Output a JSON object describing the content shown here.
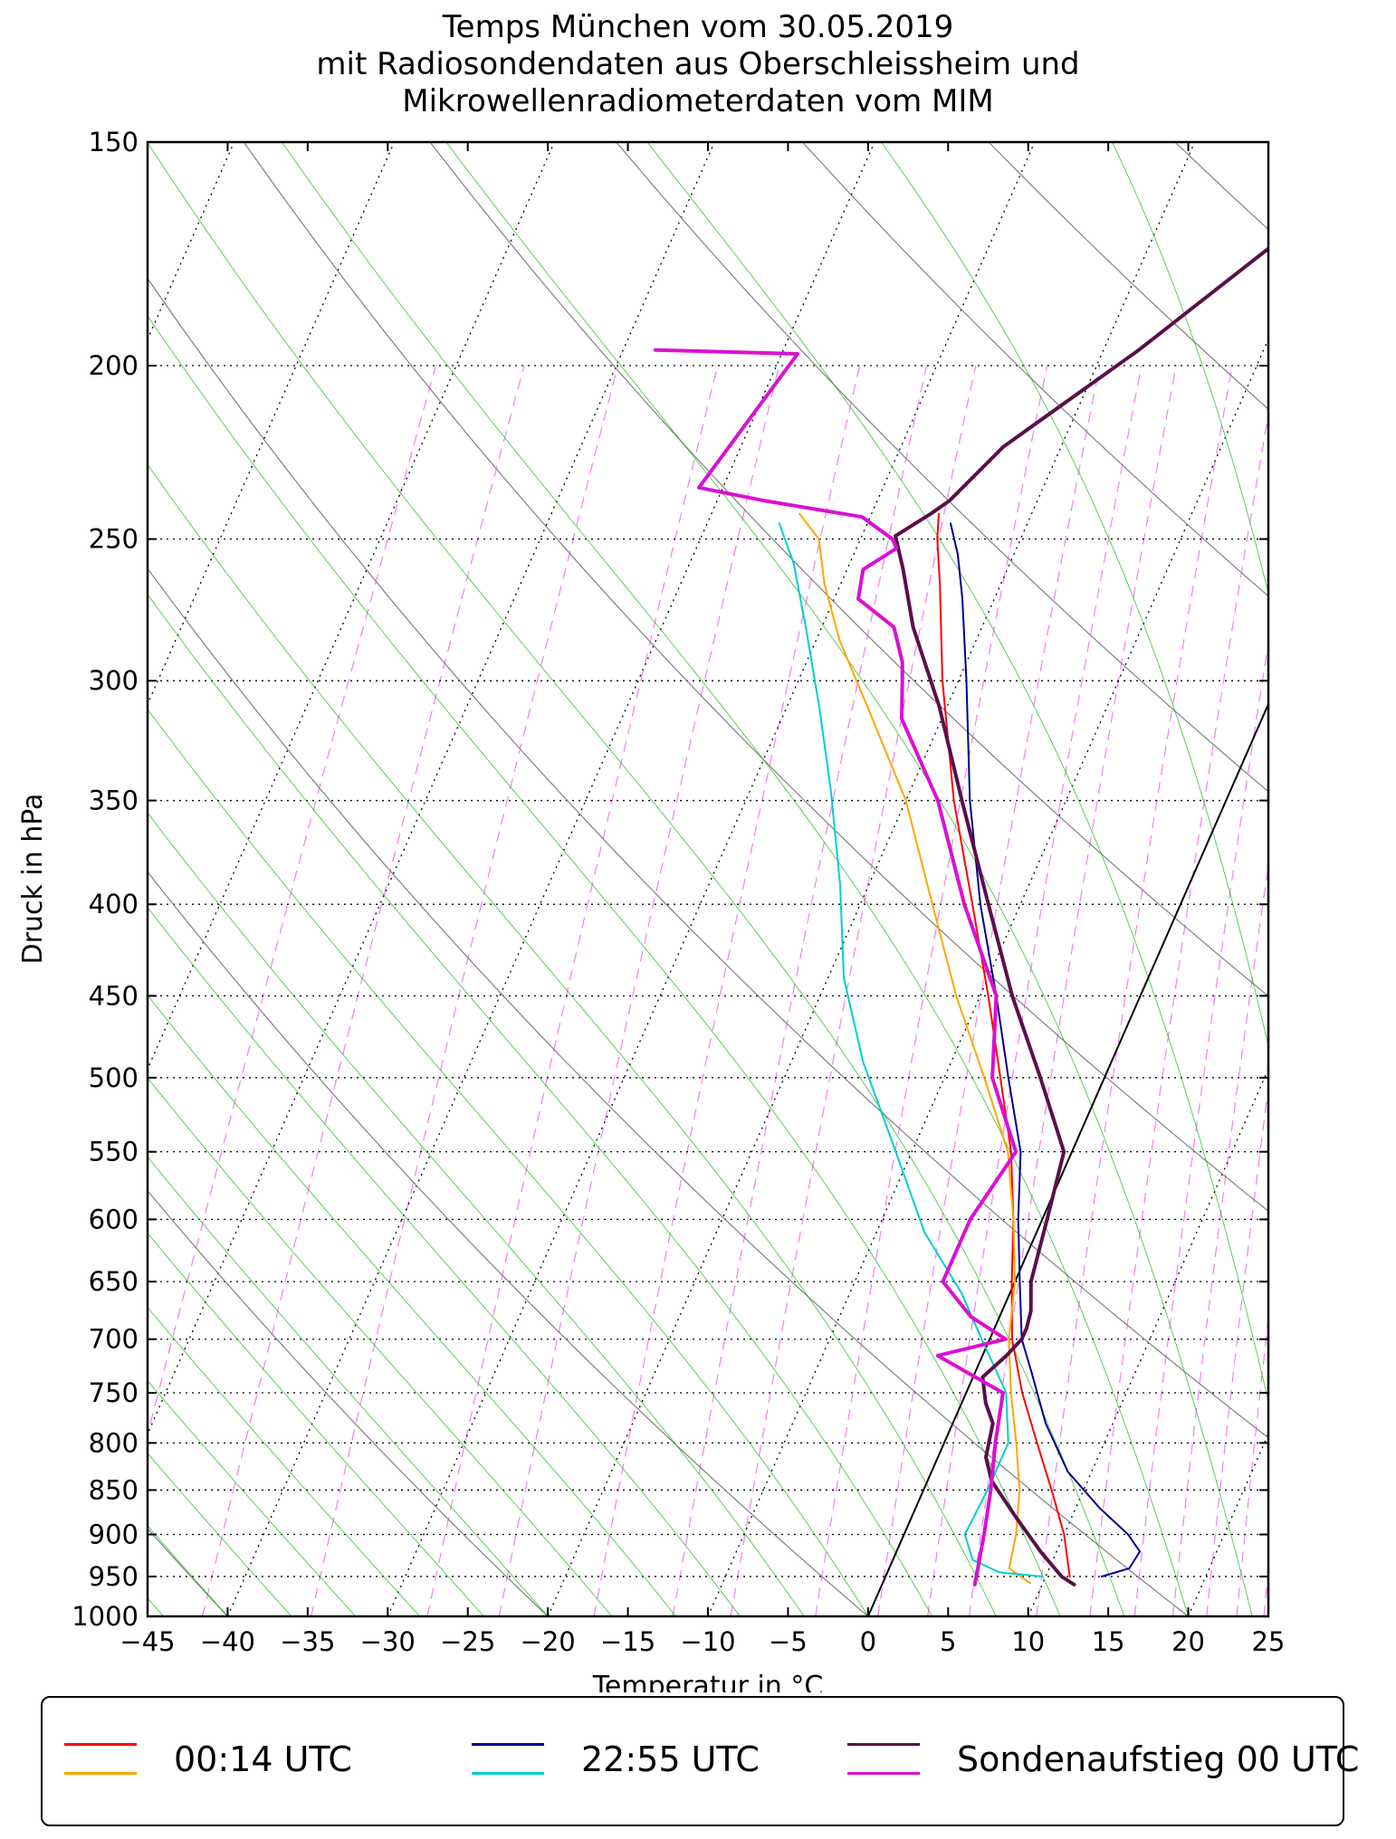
{
  "title_lines": [
    "Temps München vom 30.05.2019",
    "mit Radiosondendaten aus Oberschleissheim und",
    "Mikrowellenradiometerdaten vom MIM"
  ],
  "chart_data": {
    "type": "line",
    "xlabel": "Temperatur in °C",
    "ylabel": "Druck in hPa",
    "xlim": [
      -45,
      25
    ],
    "ylim": [
      1000,
      150
    ],
    "y_scale": "log",
    "x_ticks": [
      -45,
      -40,
      -35,
      -30,
      -25,
      -20,
      -15,
      -10,
      -5,
      0,
      5,
      10,
      15,
      20,
      25
    ],
    "y_ticks": [
      150,
      200,
      250,
      300,
      350,
      400,
      450,
      500,
      550,
      600,
      650,
      700,
      750,
      800,
      850,
      900,
      950,
      1000
    ],
    "legend_placement": "bottom, outside plot",
    "series": [
      {
        "name": "00:14 UTC",
        "kind": "temperature",
        "color": "#ff0000",
        "width": 2,
        "points": [
          [
            11.5,
            950
          ],
          [
            10,
            900
          ],
          [
            8,
            850
          ],
          [
            5.8,
            800
          ],
          [
            3.5,
            750
          ],
          [
            1.4,
            700
          ],
          [
            -0.2,
            650
          ],
          [
            -1.8,
            600
          ],
          [
            -3.8,
            550
          ],
          [
            -6.5,
            500
          ],
          [
            -9.5,
            450
          ],
          [
            -13,
            400
          ],
          [
            -17,
            350
          ],
          [
            -21,
            300
          ],
          [
            -23.8,
            265
          ],
          [
            -25.2,
            250
          ],
          [
            -25.8,
            242
          ]
        ]
      },
      {
        "name": "",
        "kind": "dewpoint",
        "color": "#ffa500",
        "width": 2,
        "points": [
          [
            9.2,
            958
          ],
          [
            7.5,
            940
          ],
          [
            7,
            900
          ],
          [
            6,
            850
          ],
          [
            4.5,
            800
          ],
          [
            2.8,
            750
          ],
          [
            1.2,
            700
          ],
          [
            0,
            650
          ],
          [
            -1.8,
            600
          ],
          [
            -4,
            550
          ],
          [
            -7.5,
            500
          ],
          [
            -11.5,
            450
          ],
          [
            -15.5,
            400
          ],
          [
            -20,
            350
          ],
          [
            -25,
            310
          ],
          [
            -28.5,
            285
          ],
          [
            -31,
            265
          ],
          [
            -32.6,
            250
          ],
          [
            -34.5,
            242
          ]
        ]
      },
      {
        "name": "22:55 UTC",
        "kind": "temperature",
        "color": "#00008b",
        "width": 2,
        "points": [
          [
            13.5,
            950
          ],
          [
            15,
            940
          ],
          [
            15.2,
            920
          ],
          [
            14,
            900
          ],
          [
            11.5,
            870
          ],
          [
            8.5,
            830
          ],
          [
            5.8,
            780
          ],
          [
            3.5,
            730
          ],
          [
            2,
            700
          ],
          [
            0.3,
            650
          ],
          [
            -1.5,
            600
          ],
          [
            -3.2,
            550
          ],
          [
            -6,
            500
          ],
          [
            -9,
            450
          ],
          [
            -12.5,
            400
          ],
          [
            -16,
            350
          ],
          [
            -19.5,
            300
          ],
          [
            -22,
            270
          ],
          [
            -23.5,
            255
          ],
          [
            -24.8,
            245
          ]
        ]
      },
      {
        "name": "",
        "kind": "dewpoint",
        "color": "#00ced1",
        "width": 2,
        "points": [
          [
            9.8,
            950
          ],
          [
            7,
            945
          ],
          [
            5,
            930
          ],
          [
            3.8,
            900
          ],
          [
            4,
            850
          ],
          [
            4,
            800
          ],
          [
            2.5,
            750
          ],
          [
            -0.5,
            700
          ],
          [
            -3,
            660
          ],
          [
            -7,
            610
          ],
          [
            -11,
            550
          ],
          [
            -15.5,
            490
          ],
          [
            -19,
            440
          ],
          [
            -21.8,
            390
          ],
          [
            -25,
            345
          ],
          [
            -28,
            310
          ],
          [
            -31,
            280
          ],
          [
            -33.5,
            258
          ],
          [
            -35.5,
            245
          ]
        ]
      },
      {
        "name": "Sondenaufstieg 00 UTC",
        "kind": "temperature",
        "color": "#5b0f4a",
        "width": 4,
        "points": [
          [
            12,
            960
          ],
          [
            11,
            950
          ],
          [
            9,
            920
          ],
          [
            6.5,
            880
          ],
          [
            4,
            840
          ],
          [
            3,
            815
          ],
          [
            2.5,
            780
          ],
          [
            1.5,
            760
          ],
          [
            0.6,
            735
          ],
          [
            1.5,
            715
          ],
          [
            2,
            700
          ],
          [
            2,
            690
          ],
          [
            1.8,
            675
          ],
          [
            1,
            650
          ],
          [
            0.3,
            600
          ],
          [
            -0.5,
            550
          ],
          [
            -4,
            500
          ],
          [
            -8,
            450
          ],
          [
            -12,
            400
          ],
          [
            -16.5,
            350
          ],
          [
            -20.5,
            310
          ],
          [
            -24.3,
            280
          ],
          [
            -26.5,
            260
          ],
          [
            -27.9,
            249
          ],
          [
            -26.3,
            242
          ],
          [
            -25.5,
            238
          ],
          [
            -23.6,
            222
          ],
          [
            -17.8,
            196
          ],
          [
            -12,
            170
          ],
          [
            -9,
            150
          ]
        ]
      },
      {
        "name": "",
        "kind": "dewpoint",
        "color": "#da10d2",
        "width": 4,
        "points": [
          [
            5.8,
            960
          ],
          [
            5,
            900
          ],
          [
            4.2,
            850
          ],
          [
            3.2,
            800
          ],
          [
            2.3,
            750
          ],
          [
            -2.8,
            715
          ],
          [
            1,
            700
          ],
          [
            -1.8,
            680
          ],
          [
            -4.5,
            650
          ],
          [
            -4.5,
            600
          ],
          [
            -3.5,
            550
          ],
          [
            -7,
            500
          ],
          [
            -9,
            450
          ],
          [
            -13.5,
            400
          ],
          [
            -18,
            350
          ],
          [
            -22.5,
            315
          ],
          [
            -23.5,
            300
          ],
          [
            -24,
            293
          ],
          [
            -25.5,
            280
          ],
          [
            -28.5,
            270
          ],
          [
            -29,
            260
          ],
          [
            -27.5,
            253
          ],
          [
            -28,
            250
          ],
          [
            -30.5,
            243
          ],
          [
            -37,
            238
          ],
          [
            -41.5,
            234
          ],
          [
            -39,
            197
          ],
          [
            -48,
            196
          ]
        ]
      }
    ],
    "background": {
      "isotherm_color": "#000000",
      "dry_adiabat_color": "#808080",
      "moist_adiabat_color": "#00b000",
      "mixing_ratio_color": "#ee82ee",
      "freezing_line_color": "#000000"
    }
  },
  "legend": [
    {
      "label": "00:14 UTC",
      "colors": [
        "#ff0000",
        "#ffa500"
      ]
    },
    {
      "label": "22:55 UTC",
      "colors": [
        "#00008b",
        "#00ced1"
      ]
    },
    {
      "label": "Sondenaufstieg 00 UTC",
      "colors": [
        "#5b0f4a",
        "#da10d2"
      ]
    }
  ]
}
